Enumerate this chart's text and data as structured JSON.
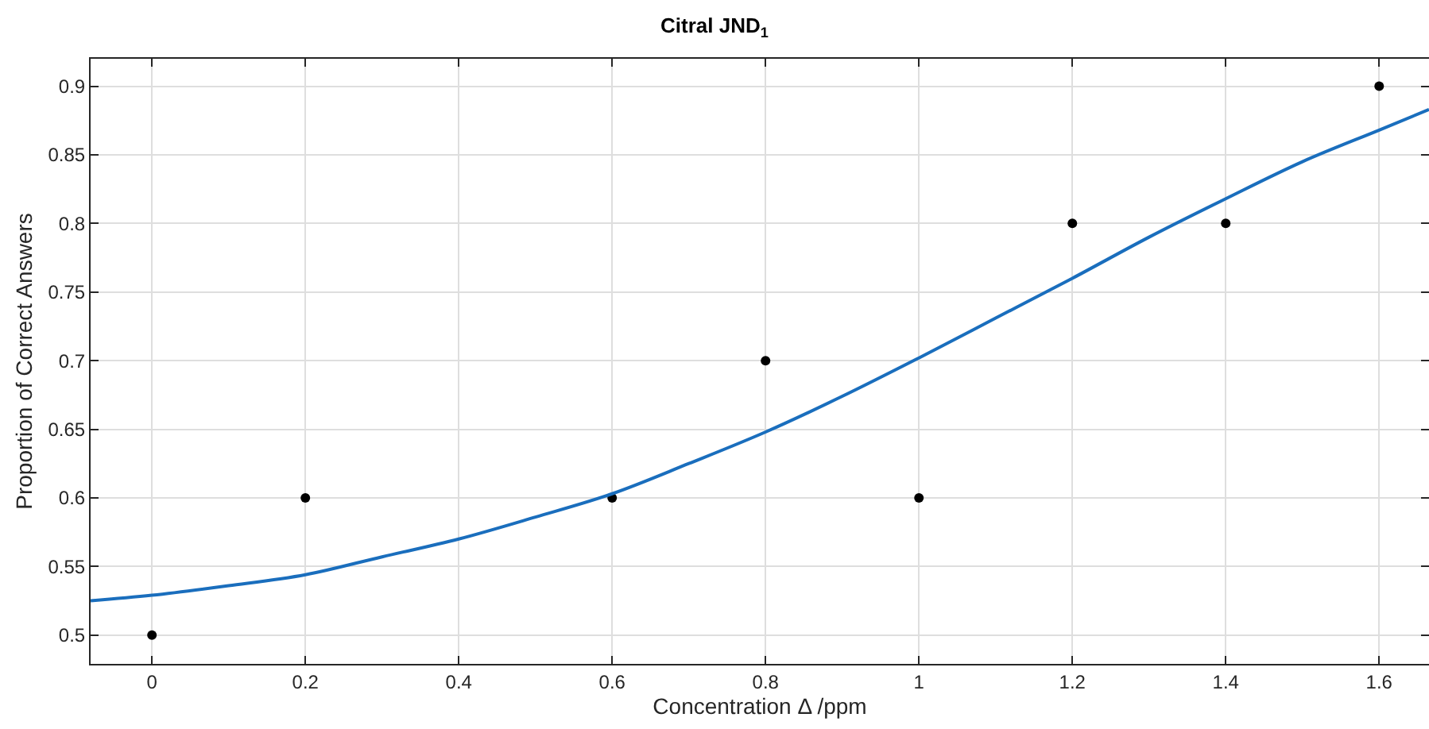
{
  "chart_data": {
    "type": "scatter",
    "title": "Citral JND$_{1}$",
    "xlabel": "Concentration Δ /ppm",
    "ylabel": "Proportion of Correct Answers",
    "series": [
      {
        "color": "#000000",
        "marker": "circle",
        "x": [
          0,
          0.2,
          0.6,
          0.8,
          1,
          1.2,
          1.4,
          1.6
        ],
        "values": [
          0.5,
          0.6,
          0.6,
          0.7,
          0.6,
          0.8,
          0.8,
          0.9
        ]
      },
      {
        "type": "line",
        "color": "#1a6ebd",
        "marker": "none",
        "line_style": "solid",
        "x": [
          -0.08,
          0,
          0.1,
          0.2,
          0.3,
          0.4,
          0.5,
          0.6,
          0.7,
          0.8,
          0.9,
          1.0,
          1.1,
          1.2,
          1.3,
          1.4,
          1.5,
          1.6,
          1.665
        ],
        "values": [
          0.525,
          0.529,
          0.536,
          0.544,
          0.557,
          0.57,
          0.586,
          0.603,
          0.625,
          0.648,
          0.674,
          0.702,
          0.731,
          0.76,
          0.79,
          0.818,
          0.845,
          0.868,
          0.883
        ]
      }
    ],
    "xlim": [
      -0.08,
      1.665
    ],
    "ylim": [
      0.479,
      0.92
    ],
    "xticks": [
      0,
      0.2,
      0.4,
      0.6,
      0.8,
      1,
      1.2,
      1.4,
      1.6
    ],
    "yticks": [
      0.5,
      0.55,
      0.6,
      0.65,
      0.7,
      0.75,
      0.8,
      0.85,
      0.9
    ],
    "grid": true
  }
}
